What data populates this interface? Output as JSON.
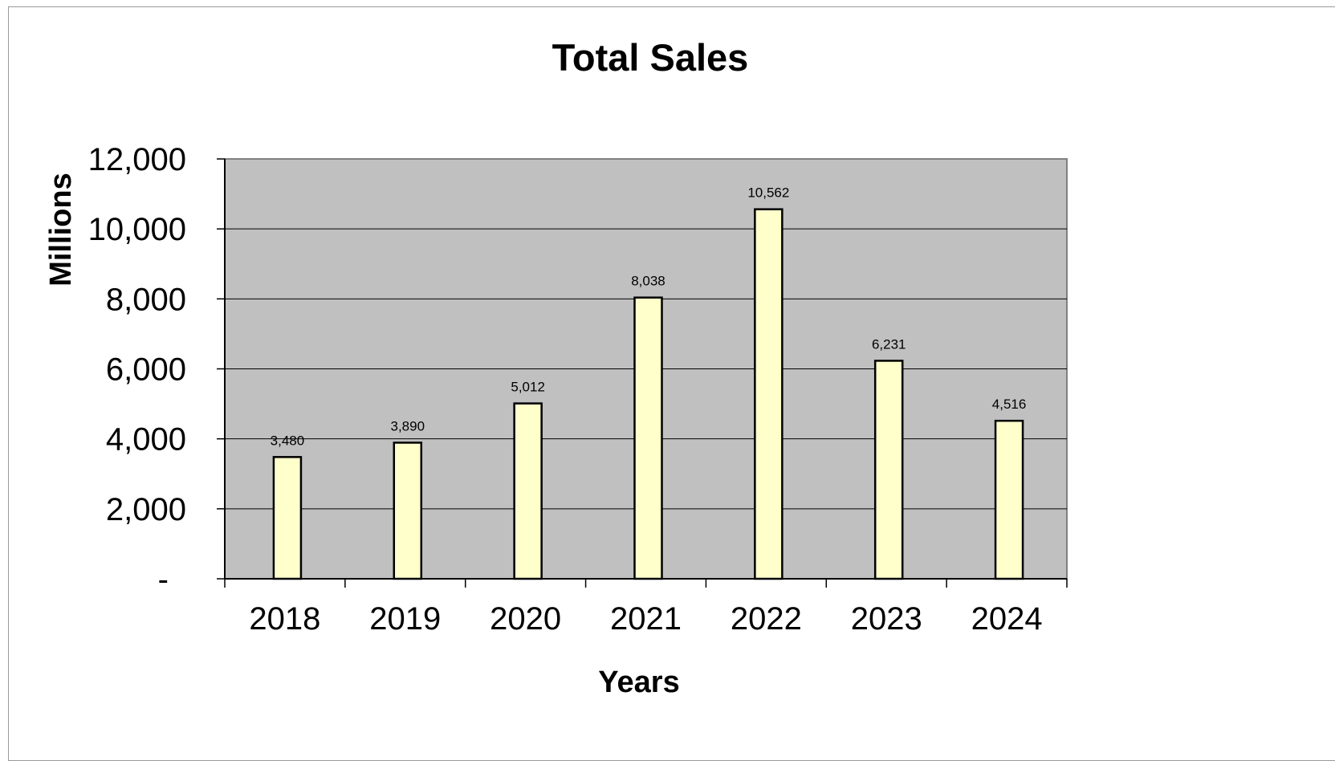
{
  "chart_data": {
    "type": "bar",
    "title": "Total Sales",
    "xlabel": "Years",
    "ylabel": "Millions",
    "categories": [
      "2018",
      "2019",
      "2020",
      "2021",
      "2022",
      "2023",
      "2024"
    ],
    "values": [
      3480,
      3890,
      5012,
      8038,
      10562,
      6231,
      4516
    ],
    "data_labels": [
      "3,480",
      "3,890",
      "5,012",
      "8,038",
      "10,562",
      "6,231",
      "4,516"
    ],
    "ylim": [
      0,
      12000
    ],
    "yticks": [
      0,
      2000,
      4000,
      6000,
      8000,
      10000,
      12000
    ],
    "ytick_labels": [
      "-",
      "2,000",
      "4,000",
      "6,000",
      "8,000",
      "10,000",
      "12,000"
    ],
    "grid": true,
    "legend": "none",
    "colors": {
      "plot_background": "#c0c0c0",
      "bar_fill": "#ffffcc",
      "bar_stroke": "#000000",
      "gridline": "#000000"
    }
  }
}
